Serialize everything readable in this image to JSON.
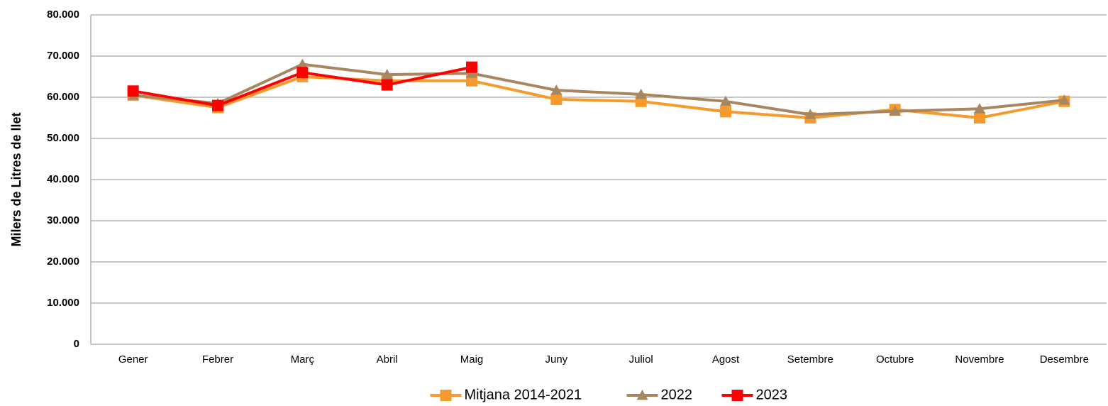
{
  "chart_data": {
    "type": "line",
    "y_label": "Milers de Litres de llet",
    "categories": [
      "Gener",
      "Febrer",
      "Març",
      "Abril",
      "Maig",
      "Juny",
      "Juliol",
      "Agost",
      "Setembre",
      "Octubre",
      "Novembre",
      "Desembre"
    ],
    "series": [
      {
        "name": "Mitjana 2014-2021",
        "color": "#f79a2e",
        "marker": "square",
        "values": [
          60500,
          57500,
          65000,
          64000,
          64000,
          59500,
          59000,
          56500,
          55000,
          57000,
          55000,
          59000
        ]
      },
      {
        "name": "2022",
        "color": "#a88660",
        "marker": "triangle",
        "values": [
          60500,
          58500,
          68000,
          65500,
          65800,
          61700,
          60700,
          59000,
          55800,
          56600,
          57200,
          59300
        ]
      },
      {
        "name": "2023",
        "color": "#ff0000",
        "marker": "square",
        "values": [
          61500,
          58000,
          66000,
          63000,
          67300,
          null,
          null,
          null,
          null,
          null,
          null,
          null
        ]
      }
    ],
    "ylim": [
      0,
      80000
    ],
    "yticks": [
      0,
      {
        "value": 10000,
        "label": "10.000"
      },
      {
        "value": 20000,
        "label": "20.000"
      },
      {
        "value": 30000,
        "label": "30.000"
      },
      {
        "value": 40000,
        "label": "40.000"
      },
      {
        "value": 50000,
        "label": "50.000"
      },
      {
        "value": 60000,
        "label": "60.000"
      },
      {
        "value": 70000,
        "label": "70.000"
      },
      {
        "value": 80000,
        "label": "80.000"
      }
    ],
    "grid": true,
    "legend": "bottom"
  }
}
